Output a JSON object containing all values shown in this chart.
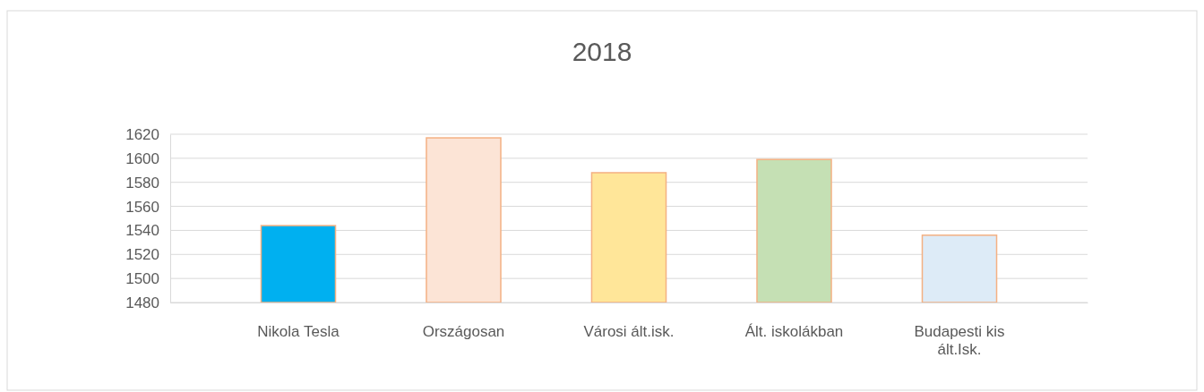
{
  "chart_data": {
    "type": "bar",
    "title": "2018",
    "categories": [
      "Nikola Tesla",
      "Országosan",
      "Városi ált.isk.",
      "Ált. iskolákban",
      "Budapesti kis ált.Isk."
    ],
    "values": [
      1544,
      1617,
      1588,
      1599,
      1536
    ],
    "colors": [
      "#00b0f0",
      "#fce4d6",
      "#ffe699",
      "#c5e0b4",
      "#ddebf7"
    ],
    "ylim": [
      1480,
      1620
    ],
    "yticks": [
      1480,
      1500,
      1520,
      1540,
      1560,
      1580,
      1600,
      1620
    ],
    "grid": "y"
  }
}
